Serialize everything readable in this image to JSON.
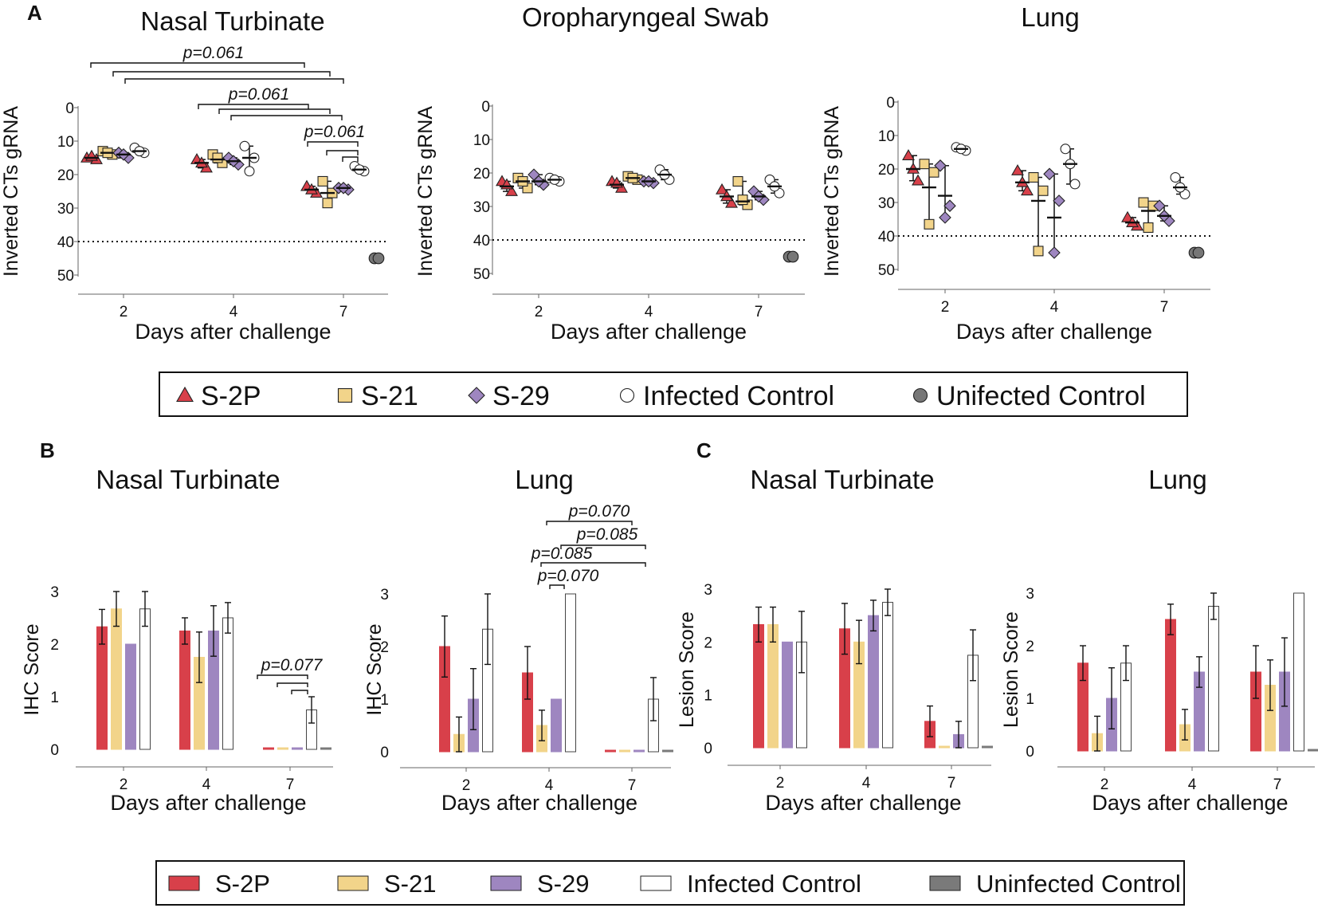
{
  "figure": {
    "panel_labels": [
      "A",
      "B",
      "C"
    ],
    "legend_a": {
      "items": [
        {
          "label": "S-2P",
          "marker": "triangle",
          "color": "#d8404a"
        },
        {
          "label": "S-21",
          "marker": "square",
          "color": "#f2d48a"
        },
        {
          "label": "S-29",
          "marker": "diamond",
          "color": "#9e86c0"
        },
        {
          "label": "Infected Control",
          "marker": "circle",
          "color": "#ffffff"
        },
        {
          "label": "Unifected Control",
          "marker": "circle",
          "color": "#777777"
        }
      ]
    },
    "legend_bc": {
      "items": [
        {
          "label": "S-2P",
          "color": "#d8404a"
        },
        {
          "label": "S-21",
          "color": "#f2d48a"
        },
        {
          "label": "S-29",
          "color": "#9e86c0"
        },
        {
          "label": "Infected Control",
          "color": "#ffffff"
        },
        {
          "label": "Uninfected Control",
          "color": "#7a7a7a"
        }
      ]
    }
  },
  "chart_data": [
    {
      "type": "scatter",
      "title": "Nasal Turbinate",
      "xlabel": "Days after challenge",
      "ylabel": "Inverted CTs gRNA",
      "categories": [
        "2",
        "4",
        "7"
      ],
      "ylim": [
        0,
        50
      ],
      "yticks": [
        "0",
        "10",
        "20",
        "30",
        "40",
        "50"
      ],
      "threshold": 40,
      "series": [
        {
          "name": "S-2P",
          "points": [
            [
              15,
              15.5,
              14.5
            ],
            [
              15.5,
              18,
              16.5
            ],
            [
              23.5,
              25.5,
              24.5
            ]
          ],
          "mean": [
            15,
            16.5,
            24.5
          ]
        },
        {
          "name": "S-21",
          "points": [
            [
              13,
              14,
              13.5
            ],
            [
              14,
              16.5,
              15
            ],
            [
              22,
              25.5,
              28.5
            ]
          ],
          "mean": [
            13.5,
            15.5,
            25.5
          ]
        },
        {
          "name": "S-29",
          "points": [
            [
              13.5,
              15,
              14
            ],
            [
              15,
              17,
              16
            ],
            [
              24,
              24.5,
              24
            ]
          ],
          "mean": [
            14,
            16,
            24
          ]
        },
        {
          "name": "Infected Control",
          "points": [
            [
              12,
              13.5,
              13
            ],
            [
              11.5,
              15,
              19
            ],
            [
              17.5,
              19,
              18.5
            ]
          ],
          "mean": [
            13,
            15,
            18.5
          ]
        },
        {
          "name": "Unifected Control",
          "points": [
            [],
            [],
            [
              45
            ]
          ],
          "mean": [
            null,
            null,
            45
          ]
        }
      ],
      "annotations": [
        "p=0.061",
        "p=0.061",
        "p=0.061"
      ]
    },
    {
      "type": "scatter",
      "title": "Oropharyngeal Swab",
      "xlabel": "Days after challenge",
      "ylabel": "Inverted CTs gRNA",
      "categories": [
        "2",
        "4",
        "7"
      ],
      "ylim": [
        0,
        50
      ],
      "yticks": [
        "0",
        "10",
        "20",
        "30",
        "40",
        "50"
      ],
      "threshold": 40,
      "series": [
        {
          "name": "S-2P",
          "points": [
            [
              22.5,
              25.5,
              23.5
            ],
            [
              22.5,
              24.5,
              23
            ],
            [
              25,
              29,
              27
            ]
          ],
          "mean": [
            24,
            23.5,
            27
          ]
        },
        {
          "name": "S-21",
          "points": [
            [
              21.5,
              24.5,
              22.5
            ],
            [
              21,
              22,
              21.5
            ],
            [
              22.5,
              29.5,
              28
            ]
          ],
          "mean": [
            22.5,
            21.5,
            28.5
          ]
        },
        {
          "name": "S-29",
          "points": [
            [
              20.5,
              23.5,
              22.5
            ],
            [
              22.5,
              23,
              22.5
            ],
            [
              25.5,
              28,
              27
            ]
          ],
          "mean": [
            22.5,
            22.5,
            27
          ]
        },
        {
          "name": "Infected Control",
          "points": [
            [
              21.5,
              22.5,
              22
            ],
            [
              19,
              22,
              20.5
            ],
            [
              22,
              26,
              24
            ]
          ],
          "mean": [
            22,
            20.5,
            24
          ]
        },
        {
          "name": "Unifected Control",
          "points": [
            [],
            [],
            [
              45
            ]
          ],
          "mean": [
            null,
            null,
            45
          ]
        }
      ]
    },
    {
      "type": "scatter",
      "title": "Lung",
      "xlabel": "Days after challenge",
      "ylabel": "Inverted CTs gRNA",
      "categories": [
        "2",
        "4",
        "7"
      ],
      "ylim": [
        0,
        50
      ],
      "yticks": [
        "0",
        "10",
        "20",
        "30",
        "40",
        "50"
      ],
      "threshold": 40,
      "series": [
        {
          "name": "S-2P",
          "points": [
            [
              16,
              23.5,
              20
            ],
            [
              20.5,
              26.5,
              24
            ],
            [
              34.5,
              37,
              36
            ]
          ],
          "mean": [
            20,
            24,
            36
          ]
        },
        {
          "name": "S-21",
          "points": [
            [
              18.5,
              21,
              36.5
            ],
            [
              22.5,
              26.5,
              44.5
            ],
            [
              30,
              31,
              37.5
            ]
          ],
          "mean": [
            25.5,
            29.5,
            32.5
          ]
        },
        {
          "name": "S-29",
          "points": [
            [
              19,
              31,
              34.5
            ],
            [
              21.5,
              29.5,
              45
            ],
            [
              31,
              35.5,
              34
            ]
          ],
          "mean": [
            28,
            34.5,
            34
          ]
        },
        {
          "name": "Infected Control",
          "points": [
            [
              13.5,
              14.5,
              14
            ],
            [
              14,
              24.5,
              18.5
            ],
            [
              22.5,
              27.5,
              25.5
            ]
          ],
          "mean": [
            14,
            18.5,
            25.5
          ]
        },
        {
          "name": "Unifected Control",
          "points": [
            [],
            [],
            [
              45
            ]
          ],
          "mean": [
            null,
            null,
            45
          ]
        }
      ]
    },
    {
      "type": "bar",
      "title": "Nasal Turbinate",
      "xlabel": "Days after challenge",
      "ylabel": "IHC Score",
      "categories": [
        "2",
        "4",
        "7"
      ],
      "ylim": [
        0,
        3
      ],
      "yticks": [
        "0",
        "1",
        "2",
        "3"
      ],
      "series": [
        {
          "name": "S-2P",
          "values": [
            2.33,
            2.25,
            0.03
          ],
          "errors": [
            0.33,
            0.25,
            0
          ]
        },
        {
          "name": "S-21",
          "values": [
            2.67,
            1.75,
            0.03
          ],
          "errors": [
            0.33,
            0.48,
            0
          ]
        },
        {
          "name": "S-29",
          "values": [
            2.0,
            2.25,
            0.03
          ],
          "errors": [
            0,
            0.48,
            0
          ]
        },
        {
          "name": "Infected Control",
          "values": [
            2.67,
            2.5,
            0.75
          ],
          "errors": [
            0.33,
            0.29,
            0.25
          ]
        },
        {
          "name": "Uninfected Control",
          "values": [
            null,
            null,
            0.03
          ],
          "errors": [
            0,
            0,
            0
          ]
        }
      ],
      "annotations": [
        "p=0.077"
      ]
    },
    {
      "type": "bar",
      "title": "Lung",
      "xlabel": "Days after challenge",
      "ylabel": "IHC Score",
      "categories": [
        "2",
        "4",
        "7"
      ],
      "ylim": [
        0,
        3
      ],
      "yticks": [
        "0",
        "1",
        "2",
        "3"
      ],
      "series": [
        {
          "name": "S-2P",
          "values": [
            2.0,
            1.5,
            0.03
          ],
          "errors": [
            0.58,
            0.5,
            0
          ]
        },
        {
          "name": "S-21",
          "values": [
            0.33,
            0.5,
            0.03
          ],
          "errors": [
            0.33,
            0.29,
            0
          ]
        },
        {
          "name": "S-29",
          "values": [
            1.0,
            1.0,
            0.03
          ],
          "errors": [
            0.58,
            0,
            0
          ]
        },
        {
          "name": "Infected Control",
          "values": [
            2.33,
            3.0,
            1.0
          ],
          "errors": [
            0.67,
            0,
            0.41
          ]
        },
        {
          "name": "Uninfected Control",
          "values": [
            null,
            null,
            0.03
          ],
          "errors": [
            0,
            0,
            0
          ]
        }
      ],
      "annotations": [
        "p=0.070",
        "p=0.085",
        "p=0.085",
        "p=0.070"
      ]
    },
    {
      "type": "bar",
      "title": "Nasal Turbinate",
      "xlabel": "Days after challenge",
      "ylabel": "Lesion Score",
      "categories": [
        "2",
        "4",
        "7"
      ],
      "ylim": [
        0,
        3
      ],
      "yticks": [
        "0",
        "1",
        "2",
        "3"
      ],
      "series": [
        {
          "name": "S-2P",
          "values": [
            2.33,
            2.25,
            0.5
          ],
          "errors": [
            0.33,
            0.48,
            0.29
          ]
        },
        {
          "name": "S-21",
          "values": [
            2.33,
            2.0,
            0.03
          ],
          "errors": [
            0.33,
            0.41,
            0
          ]
        },
        {
          "name": "S-29",
          "values": [
            2.0,
            2.5,
            0.25
          ],
          "errors": [
            0,
            0.29,
            0.25
          ]
        },
        {
          "name": "Infected Control",
          "values": [
            2.0,
            2.75,
            1.75
          ],
          "errors": [
            0.58,
            0.25,
            0.48
          ]
        },
        {
          "name": "Uninfected Control",
          "values": [
            null,
            null,
            0.03
          ],
          "errors": [
            0,
            0,
            0
          ]
        }
      ]
    },
    {
      "type": "bar",
      "title": "Lung",
      "xlabel": "Days after challenge",
      "ylabel": "Lesion Score",
      "categories": [
        "2",
        "4",
        "7"
      ],
      "ylim": [
        0,
        3
      ],
      "yticks": [
        "0",
        "1",
        "2",
        "3"
      ],
      "series": [
        {
          "name": "S-2P",
          "values": [
            1.67,
            2.5,
            1.5
          ],
          "errors": [
            0.33,
            0.29,
            0.5
          ]
        },
        {
          "name": "S-21",
          "values": [
            0.33,
            0.5,
            1.25
          ],
          "errors": [
            0.33,
            0.29,
            0.48
          ]
        },
        {
          "name": "S-29",
          "values": [
            1.0,
            1.5,
            1.5
          ],
          "errors": [
            0.58,
            0.29,
            0.65
          ]
        },
        {
          "name": "Infected Control",
          "values": [
            1.67,
            2.75,
            3.0
          ],
          "errors": [
            0.33,
            0.25,
            0
          ]
        },
        {
          "name": "Uninfected Control",
          "values": [
            null,
            null,
            0.03
          ],
          "errors": [
            0,
            0,
            0
          ]
        }
      ]
    }
  ]
}
